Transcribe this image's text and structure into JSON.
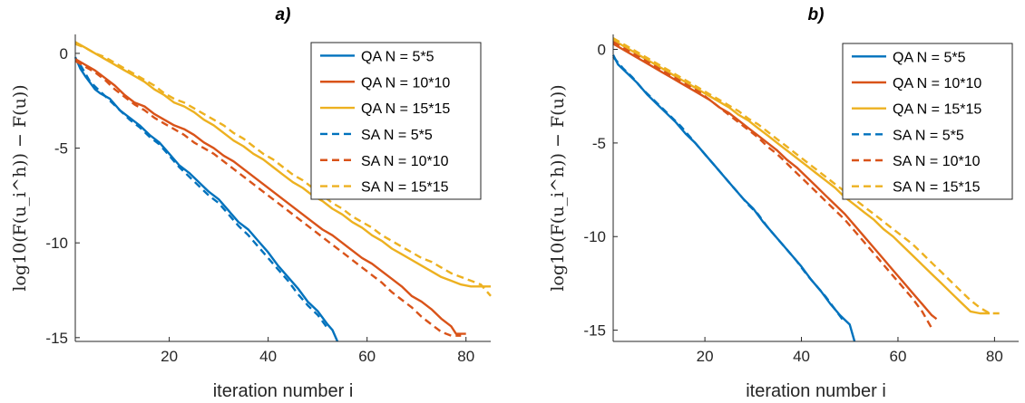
{
  "chart_data": [
    {
      "type": "line",
      "title": "a)",
      "xlabel": "iteration number i",
      "ylabel": "log10(F(u_i^h)) − F(u))",
      "xlim": [
        1,
        85
      ],
      "ylim": [
        -15.2,
        1
      ],
      "xticks": [
        20,
        40,
        60,
        80
      ],
      "yticks": [
        0,
        -5,
        -10,
        -15
      ],
      "grid": false,
      "legend_position": "top-right",
      "series": [
        {
          "name": "QA N = 5*5",
          "style": "solid",
          "color": "#0072BD",
          "x": [
            1,
            2,
            3,
            5,
            6,
            8,
            10,
            12,
            14,
            16,
            18,
            20,
            22,
            24,
            26,
            28,
            30,
            32,
            34,
            36,
            38,
            40,
            42,
            44,
            46,
            48,
            50,
            52,
            53,
            54
          ],
          "y": [
            -0.2,
            -0.8,
            -1.2,
            -1.9,
            -2.1,
            -2.4,
            -3.0,
            -3.4,
            -3.8,
            -4.3,
            -4.7,
            -5.3,
            -5.9,
            -6.3,
            -6.8,
            -7.3,
            -7.7,
            -8.3,
            -8.9,
            -9.3,
            -9.9,
            -10.5,
            -11.2,
            -11.8,
            -12.4,
            -13.1,
            -13.6,
            -14.3,
            -14.6,
            -15.2
          ]
        },
        {
          "name": "QA N = 10*10",
          "style": "solid",
          "color": "#D95319",
          "x": [
            1,
            3,
            5,
            7,
            9,
            11,
            13,
            15,
            17,
            19,
            21,
            23,
            25,
            27,
            29,
            31,
            33,
            35,
            37,
            39,
            41,
            43,
            45,
            47,
            49,
            51,
            53,
            55,
            57,
            59,
            61,
            63,
            65,
            67,
            69,
            71,
            73,
            75,
            77,
            78,
            80
          ],
          "y": [
            -0.3,
            -0.6,
            -0.9,
            -1.3,
            -1.7,
            -2.2,
            -2.6,
            -2.8,
            -3.2,
            -3.5,
            -3.8,
            -4.0,
            -4.3,
            -4.7,
            -5.0,
            -5.4,
            -5.7,
            -6.1,
            -6.5,
            -6.9,
            -7.3,
            -7.7,
            -8.1,
            -8.5,
            -8.9,
            -9.3,
            -9.6,
            -10.0,
            -10.4,
            -10.8,
            -11.1,
            -11.5,
            -11.9,
            -12.3,
            -12.8,
            -13.1,
            -13.5,
            -14.0,
            -14.4,
            -14.8,
            -14.8
          ]
        },
        {
          "name": "QA N = 15*15",
          "style": "solid",
          "color": "#EDB120",
          "x": [
            1,
            3,
            5,
            7,
            9,
            11,
            13,
            15,
            17,
            19,
            21,
            23,
            25,
            27,
            29,
            31,
            33,
            35,
            37,
            39,
            41,
            43,
            45,
            47,
            49,
            51,
            53,
            55,
            57,
            59,
            61,
            63,
            65,
            67,
            69,
            71,
            73,
            75,
            77,
            79,
            81,
            83,
            85
          ],
          "y": [
            0.6,
            0.3,
            0.0,
            -0.3,
            -0.6,
            -0.9,
            -1.2,
            -1.5,
            -1.9,
            -2.2,
            -2.6,
            -2.8,
            -3.1,
            -3.5,
            -3.8,
            -4.2,
            -4.6,
            -4.9,
            -5.3,
            -5.6,
            -6.0,
            -6.4,
            -6.8,
            -7.1,
            -7.5,
            -7.8,
            -8.2,
            -8.5,
            -8.9,
            -9.2,
            -9.6,
            -9.9,
            -10.3,
            -10.6,
            -10.9,
            -11.2,
            -11.5,
            -11.8,
            -12.0,
            -12.2,
            -12.3,
            -12.3,
            -12.3
          ]
        },
        {
          "name": "SA N = 5*5",
          "style": "dashed",
          "color": "#0072BD",
          "x": [
            2,
            4,
            6,
            8,
            10,
            12,
            14,
            16,
            18,
            20,
            22,
            24,
            26,
            28,
            30,
            32,
            34,
            36,
            38,
            40,
            42,
            44,
            46,
            48,
            50,
            52
          ],
          "y": [
            -0.6,
            -1.5,
            -2.0,
            -2.5,
            -3.0,
            -3.5,
            -3.9,
            -4.4,
            -4.8,
            -5.4,
            -6.0,
            -6.5,
            -7.0,
            -7.5,
            -7.9,
            -8.5,
            -9.1,
            -9.6,
            -10.2,
            -10.8,
            -11.4,
            -12.0,
            -12.7,
            -13.3,
            -13.8,
            -14.5
          ]
        },
        {
          "name": "SA N = 10*10",
          "style": "dashed",
          "color": "#D95319",
          "x": [
            1,
            3,
            5,
            7,
            9,
            11,
            13,
            15,
            17,
            19,
            21,
            23,
            25,
            27,
            29,
            31,
            33,
            35,
            37,
            39,
            41,
            43,
            45,
            47,
            49,
            51,
            53,
            55,
            57,
            59,
            61,
            63,
            65,
            67,
            69,
            71,
            73,
            75,
            77,
            79
          ],
          "y": [
            -0.4,
            -0.7,
            -1.0,
            -1.4,
            -1.9,
            -2.3,
            -2.7,
            -3.0,
            -3.4,
            -3.7,
            -4.0,
            -4.3,
            -4.7,
            -5.0,
            -5.3,
            -5.7,
            -6.1,
            -6.5,
            -6.9,
            -7.3,
            -7.7,
            -8.1,
            -8.5,
            -8.9,
            -9.3,
            -9.7,
            -10.1,
            -10.5,
            -10.9,
            -11.3,
            -11.7,
            -12.1,
            -12.6,
            -13.0,
            -13.4,
            -13.9,
            -14.3,
            -14.7,
            -14.9,
            -14.9
          ]
        },
        {
          "name": "SA N = 15*15",
          "style": "dashed",
          "color": "#EDB120",
          "x": [
            1,
            3,
            5,
            7,
            9,
            11,
            13,
            15,
            17,
            19,
            21,
            23,
            25,
            27,
            29,
            31,
            33,
            35,
            37,
            39,
            41,
            43,
            45,
            47,
            49,
            51,
            53,
            55,
            57,
            59,
            61,
            63,
            65,
            67,
            69,
            71,
            73,
            75,
            77,
            79,
            81,
            83,
            85
          ],
          "y": [
            0.5,
            0.3,
            0.0,
            -0.2,
            -0.5,
            -0.8,
            -1.1,
            -1.4,
            -1.7,
            -2.1,
            -2.4,
            -2.6,
            -2.9,
            -3.2,
            -3.5,
            -3.8,
            -4.2,
            -4.5,
            -4.9,
            -5.3,
            -5.6,
            -6.0,
            -6.4,
            -6.7,
            -7.1,
            -7.5,
            -7.9,
            -8.2,
            -8.6,
            -8.9,
            -9.2,
            -9.6,
            -9.9,
            -10.2,
            -10.5,
            -10.8,
            -11.0,
            -11.3,
            -11.6,
            -11.8,
            -12.0,
            -12.2,
            -12.8
          ]
        }
      ]
    },
    {
      "type": "line",
      "title": "b)",
      "xlabel": "iteration number i",
      "ylabel": "log10(F(u_i^h)) − F(u))",
      "xlim": [
        1,
        85
      ],
      "ylim": [
        -15.6,
        0.8
      ],
      "xticks": [
        20,
        40,
        60,
        80
      ],
      "yticks": [
        0,
        -5,
        -10,
        -15
      ],
      "grid": false,
      "legend_position": "top-right",
      "series": [
        {
          "name": "QA N = 5*5",
          "style": "solid",
          "color": "#0072BD",
          "x": [
            1,
            2,
            4,
            6,
            8,
            10,
            12,
            14,
            16,
            18,
            20,
            22,
            24,
            26,
            28,
            30,
            32,
            34,
            36,
            38,
            40,
            42,
            44,
            46,
            48,
            50,
            51
          ],
          "y": [
            -0.3,
            -0.8,
            -1.3,
            -1.8,
            -2.4,
            -2.9,
            -3.4,
            -3.9,
            -4.5,
            -5.0,
            -5.6,
            -6.2,
            -6.8,
            -7.4,
            -8.0,
            -8.5,
            -9.2,
            -9.8,
            -10.4,
            -11.0,
            -11.6,
            -12.3,
            -12.9,
            -13.6,
            -14.2,
            -14.7,
            -15.6
          ]
        },
        {
          "name": "QA N = 10*10",
          "style": "solid",
          "color": "#D95319",
          "x": [
            1,
            3,
            5,
            7,
            9,
            11,
            13,
            15,
            17,
            19,
            21,
            23,
            25,
            27,
            29,
            31,
            33,
            35,
            37,
            39,
            41,
            43,
            45,
            47,
            49,
            51,
            53,
            55,
            57,
            59,
            61,
            63,
            65,
            67,
            68
          ],
          "y": [
            0.3,
            0.0,
            -0.3,
            -0.6,
            -0.9,
            -1.2,
            -1.5,
            -1.8,
            -2.1,
            -2.4,
            -2.7,
            -3.1,
            -3.4,
            -3.8,
            -4.2,
            -4.6,
            -5.0,
            -5.4,
            -5.9,
            -6.3,
            -6.8,
            -7.3,
            -7.8,
            -8.3,
            -8.8,
            -9.4,
            -10.0,
            -10.6,
            -11.2,
            -11.8,
            -12.4,
            -13.0,
            -13.6,
            -14.2,
            -14.4
          ]
        },
        {
          "name": "QA N = 15*15",
          "style": "solid",
          "color": "#EDB120",
          "x": [
            1,
            3,
            5,
            7,
            9,
            11,
            13,
            15,
            17,
            19,
            21,
            23,
            25,
            27,
            29,
            31,
            33,
            35,
            37,
            39,
            41,
            43,
            45,
            47,
            49,
            51,
            53,
            55,
            57,
            59,
            61,
            63,
            65,
            67,
            69,
            71,
            73,
            75,
            77,
            79
          ],
          "y": [
            0.5,
            0.2,
            -0.1,
            -0.4,
            -0.7,
            -1.0,
            -1.3,
            -1.6,
            -1.9,
            -2.2,
            -2.5,
            -2.8,
            -3.1,
            -3.5,
            -3.8,
            -4.2,
            -4.6,
            -5.0,
            -5.4,
            -5.8,
            -6.2,
            -6.6,
            -7.0,
            -7.4,
            -7.9,
            -8.3,
            -8.7,
            -9.1,
            -9.6,
            -10.0,
            -10.5,
            -11.0,
            -11.5,
            -12.0,
            -12.5,
            -13.0,
            -13.5,
            -14.0,
            -14.1,
            -14.1
          ]
        },
        {
          "name": "SA N = 5*5",
          "style": "dashed",
          "color": "#0072BD",
          "x": [
            1,
            3,
            5,
            7,
            9,
            11,
            13,
            15,
            17,
            19,
            21,
            23,
            25,
            27,
            29,
            31,
            33,
            35,
            37,
            39,
            41,
            43,
            45,
            47,
            49
          ],
          "y": [
            -0.4,
            -1.0,
            -1.5,
            -2.1,
            -2.6,
            -3.1,
            -3.6,
            -4.1,
            -4.7,
            -5.3,
            -5.9,
            -6.5,
            -7.1,
            -7.7,
            -8.3,
            -8.8,
            -9.5,
            -10.1,
            -10.7,
            -11.3,
            -12.0,
            -12.6,
            -13.2,
            -13.9,
            -14.6
          ]
        },
        {
          "name": "SA N = 10*10",
          "style": "dashed",
          "color": "#D95319",
          "x": [
            1,
            3,
            5,
            7,
            9,
            11,
            13,
            15,
            17,
            19,
            21,
            23,
            25,
            27,
            29,
            31,
            33,
            35,
            37,
            39,
            41,
            43,
            45,
            47,
            49,
            51,
            53,
            55,
            57,
            59,
            61,
            63,
            65,
            67
          ],
          "y": [
            0.4,
            0.1,
            -0.2,
            -0.5,
            -0.8,
            -1.1,
            -1.4,
            -1.7,
            -2.0,
            -2.3,
            -2.7,
            -3.1,
            -3.5,
            -3.9,
            -4.3,
            -4.7,
            -5.2,
            -5.6,
            -6.1,
            -6.6,
            -7.1,
            -7.6,
            -8.1,
            -8.6,
            -9.1,
            -9.7,
            -10.3,
            -10.9,
            -11.5,
            -12.1,
            -12.7,
            -13.3,
            -14.0,
            -14.9
          ]
        },
        {
          "name": "SA N = 15*15",
          "style": "dashed",
          "color": "#EDB120",
          "x": [
            1,
            3,
            5,
            7,
            9,
            11,
            13,
            15,
            17,
            19,
            21,
            23,
            25,
            27,
            29,
            31,
            33,
            35,
            37,
            39,
            41,
            43,
            45,
            47,
            49,
            51,
            53,
            55,
            57,
            59,
            61,
            63,
            65,
            67,
            69,
            71,
            73,
            75,
            77,
            79,
            81
          ],
          "y": [
            0.6,
            0.3,
            0.0,
            -0.3,
            -0.6,
            -0.9,
            -1.2,
            -1.5,
            -1.8,
            -2.1,
            -2.4,
            -2.7,
            -3.0,
            -3.3,
            -3.7,
            -4.0,
            -4.4,
            -4.8,
            -5.2,
            -5.6,
            -6.0,
            -6.4,
            -6.8,
            -7.2,
            -7.6,
            -8.0,
            -8.4,
            -8.8,
            -9.2,
            -9.6,
            -10.0,
            -10.4,
            -10.9,
            -11.4,
            -11.9,
            -12.4,
            -12.9,
            -13.4,
            -13.8,
            -14.1,
            -14.1
          ]
        }
      ]
    }
  ]
}
